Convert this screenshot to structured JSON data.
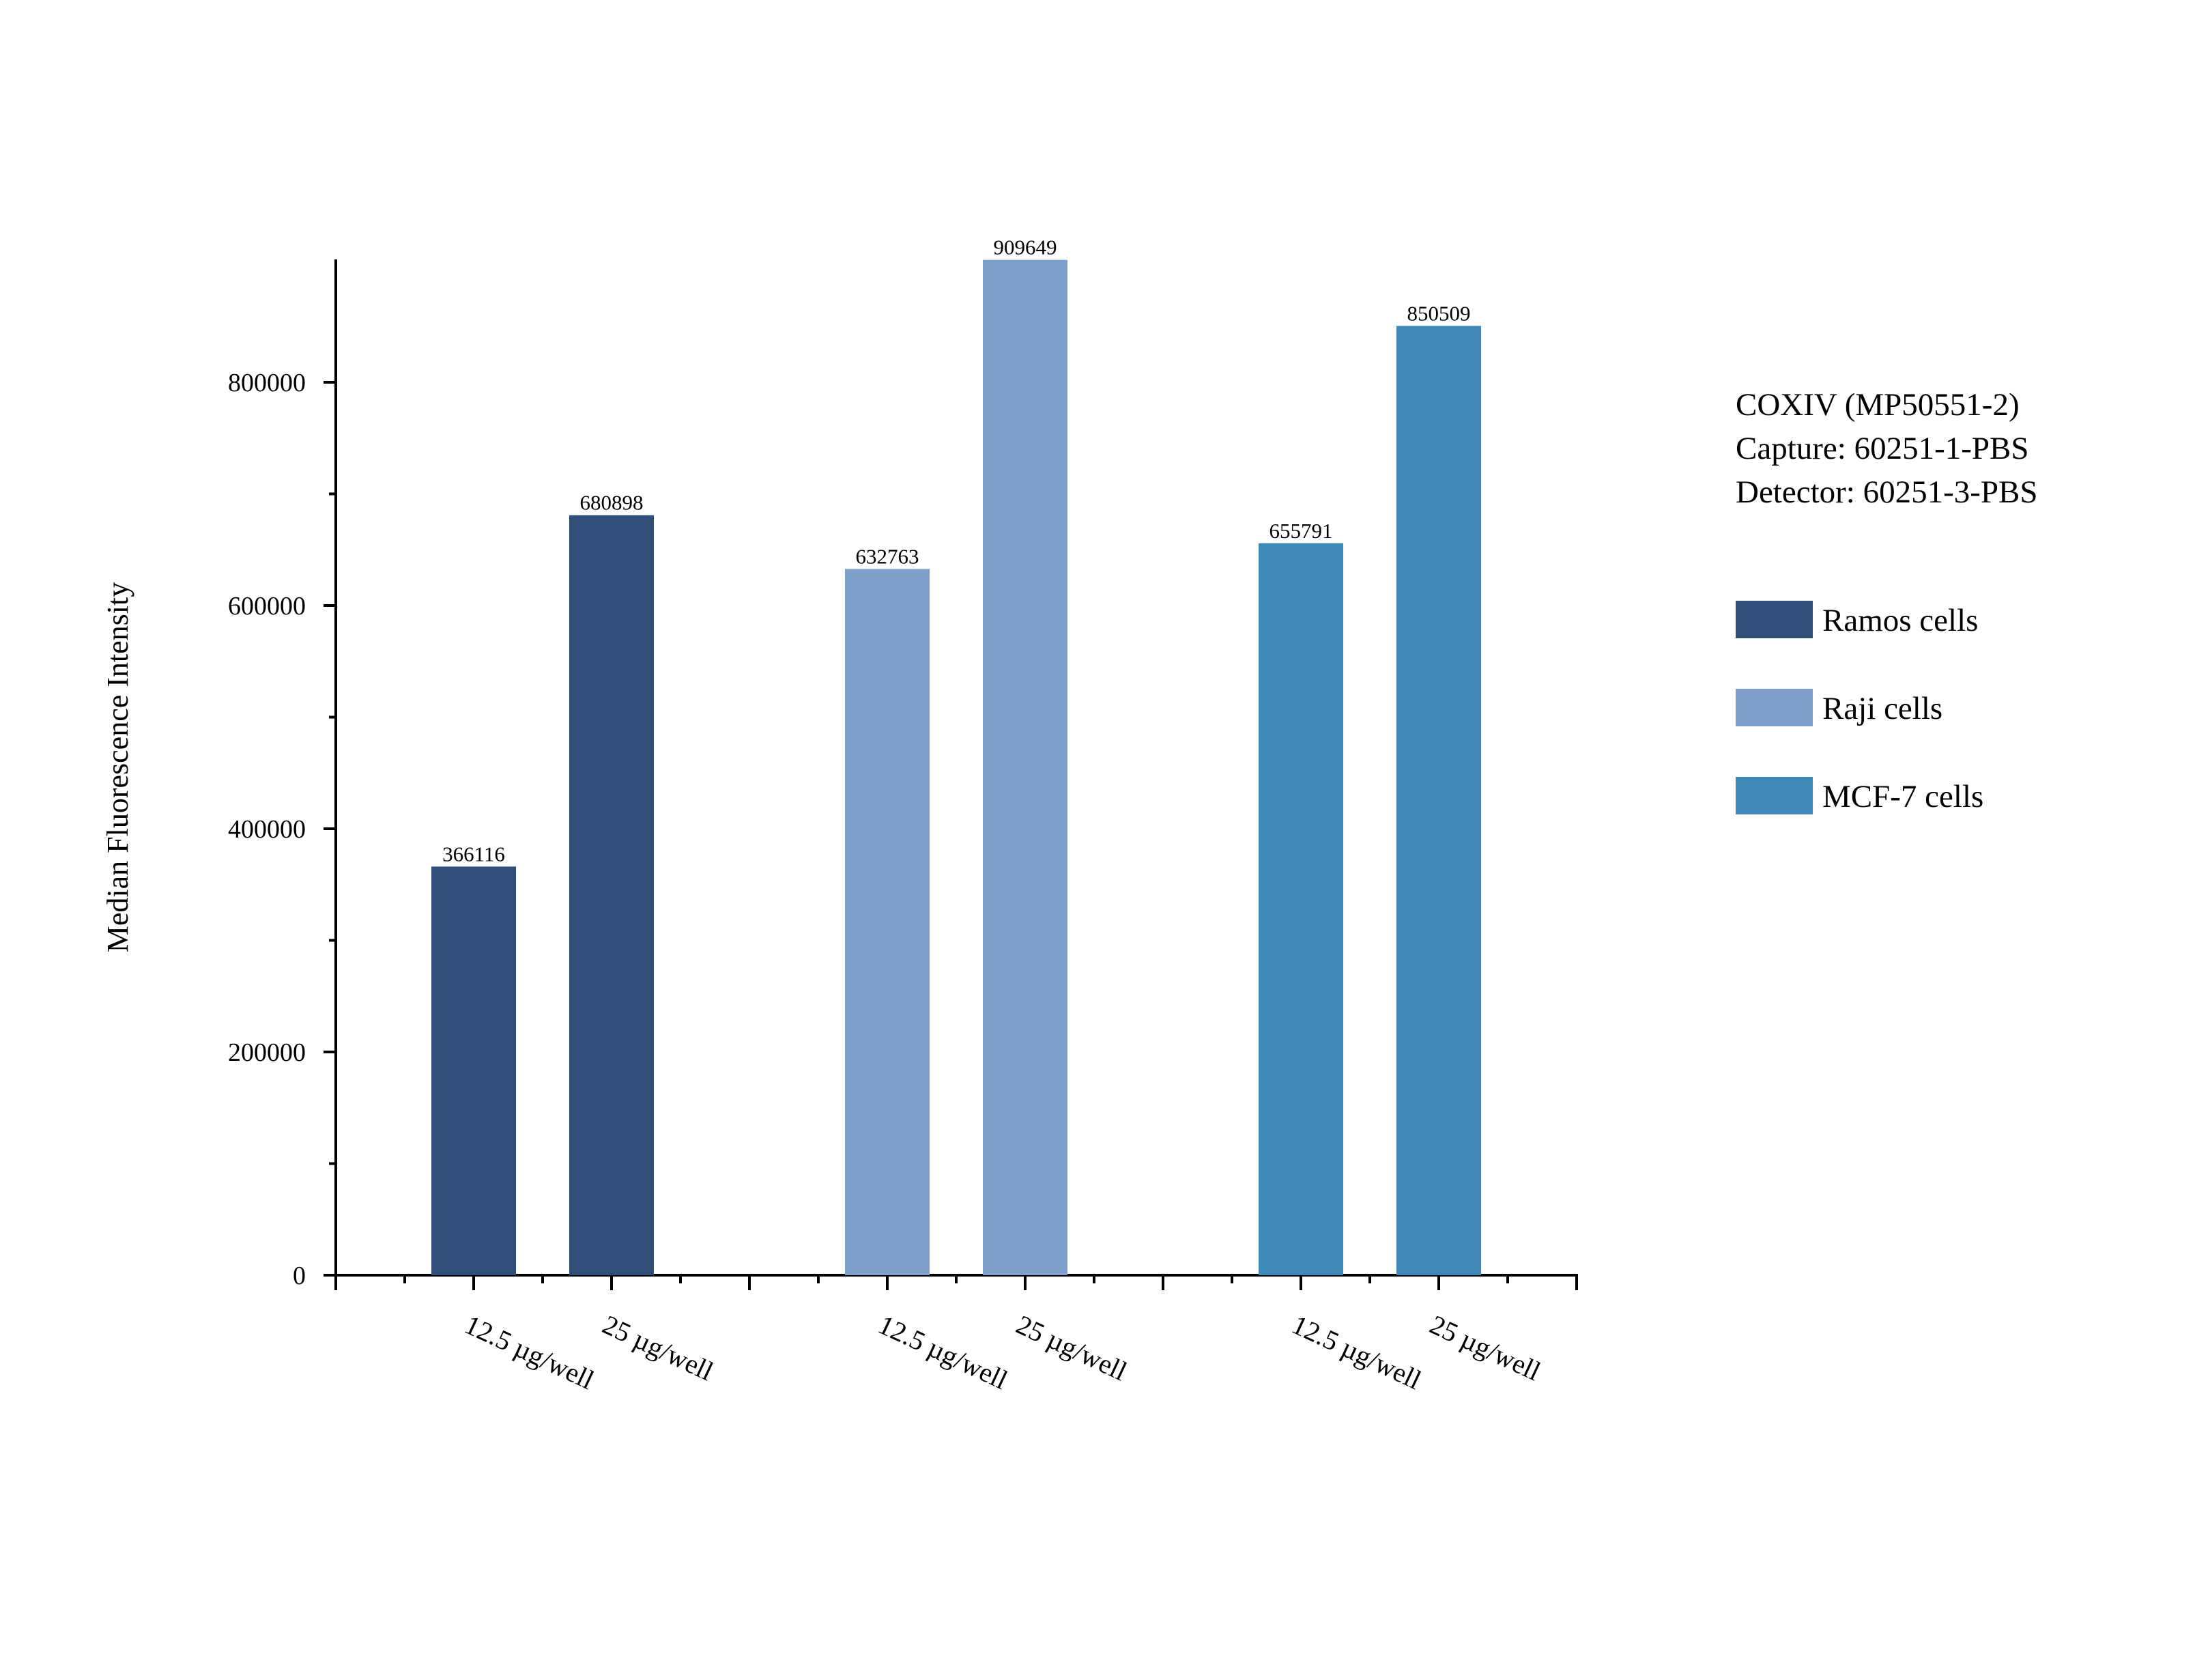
{
  "chart_data": {
    "type": "bar",
    "title": "",
    "xlabel": "",
    "ylabel": "Median Fluorescence Intensity",
    "ylim": [
      0,
      910000
    ],
    "yticks": [
      0,
      200000,
      400000,
      600000,
      800000
    ],
    "ytick_labels": [
      "0",
      "200000",
      "400000",
      "600000",
      "800000"
    ],
    "grid": false,
    "legend_position": "right",
    "annotation": [
      "COXIV (MP50551-2)",
      "Capture: 60251-1-PBS",
      "Detector: 60251-3-PBS"
    ],
    "series": [
      {
        "name": "Ramos cells",
        "color": "#2F4E78",
        "categories": [
          "12.5 µg/well",
          "25 µg/well"
        ],
        "values": [
          366116,
          680898
        ]
      },
      {
        "name": "Raji cells",
        "color": "#7E9ECB",
        "categories": [
          "12.5 µg/well",
          "25 µg/well"
        ],
        "values": [
          632763,
          909649
        ]
      },
      {
        "name": "MCF-7 cells",
        "color": "#3D88B7",
        "categories": [
          "12.5 µg/well",
          "25 µg/well"
        ],
        "values": [
          655791,
          850509
        ]
      }
    ]
  }
}
